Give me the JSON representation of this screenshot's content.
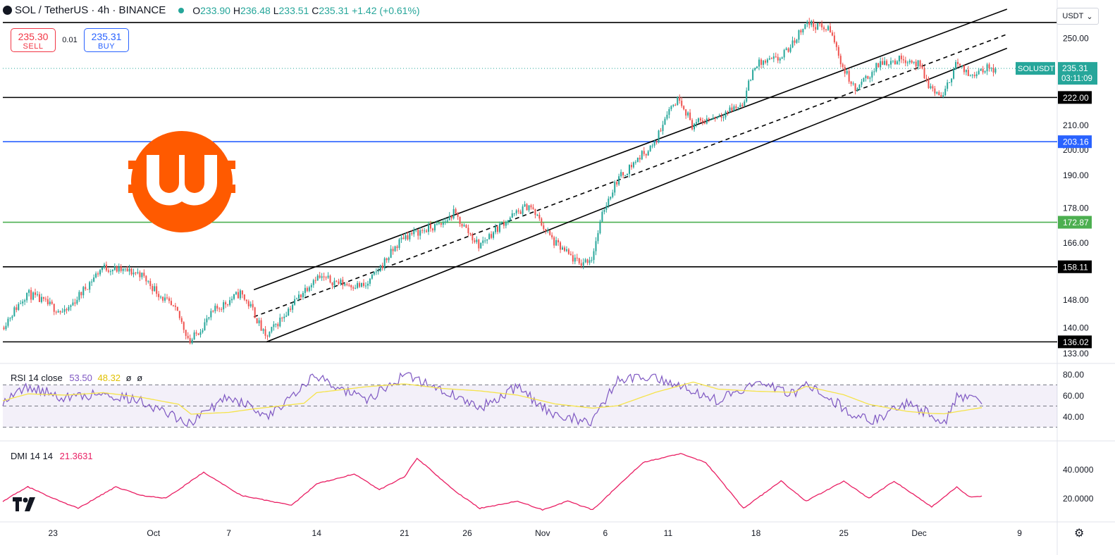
{
  "header": {
    "symbol": "SOL / TetherUS · 4h · BINANCE",
    "open_label": "O",
    "open": "233.90",
    "high_label": "H",
    "high": "236.48",
    "low_label": "L",
    "low": "233.51",
    "close_label": "C",
    "close": "235.31",
    "change": "+1.42 (+0.61%)"
  },
  "trade": {
    "sell_price": "235.30",
    "sell_label": "SELL",
    "spread": "0.01",
    "buy_price": "235.31",
    "buy_label": "BUY"
  },
  "currency_button": "USDT",
  "price_badge": {
    "symbol": "SOLUSDT",
    "price": "235.31",
    "countdown": "03:11:09"
  },
  "colors": {
    "up": "#26a69a",
    "down": "#ef5350",
    "rsi": "#7e57c2",
    "rsi_ma": "#f5e34a",
    "dmi": "#e91e63",
    "blue_line": "#2962ff",
    "green_line": "#4caf50",
    "logo": "#ff5a00"
  },
  "chart_data": [
    {
      "type": "candlestick",
      "title": "SOL / TetherUS · 4h · BINANCE",
      "y_axis_scale": "log",
      "y_ticks": [
        250.0,
        222.0,
        210.0,
        200.0,
        190.0,
        178.0,
        166.0,
        158.11,
        148.0,
        140.0,
        136.02,
        133.0
      ],
      "y_tick_labels": [
        "250.00",
        "222.00",
        "210.00",
        "200.00",
        "190.00",
        "178.00",
        "166.00",
        "158.11",
        "148.00",
        "140.00",
        "136.02",
        "133.00"
      ],
      "x_tick_labels": [
        "23",
        "Oct",
        "7",
        "14",
        "21",
        "26",
        "Nov",
        "6",
        "11",
        "18",
        "25",
        "Dec",
        "9"
      ],
      "x_tick_dates": [
        "2024-09-23",
        "2024-10-01",
        "2024-10-07",
        "2024-10-14",
        "2024-10-21",
        "2024-10-26",
        "2024-11-01",
        "2024-11-06",
        "2024-11-11",
        "2024-11-18",
        "2024-11-25",
        "2024-12-01",
        "2024-12-09"
      ],
      "x_range": [
        "2024-09-19",
        "2024-12-12"
      ],
      "horizontal_levels": [
        {
          "value": 258.0,
          "color": "#000000",
          "label": ""
        },
        {
          "value": 222.0,
          "color": "#000000",
          "label": "222.00"
        },
        {
          "value": 203.16,
          "color": "#2962ff",
          "label": "203.16"
        },
        {
          "value": 172.87,
          "color": "#4caf50",
          "label": "172.87"
        },
        {
          "value": 158.11,
          "color": "#000000",
          "label": "158.11"
        },
        {
          "value": 136.02,
          "color": "#000000",
          "label": "136.02"
        }
      ],
      "last_price": 235.31,
      "key_points": [
        {
          "date": "2024-09-19",
          "price": 140
        },
        {
          "date": "2024-09-21",
          "price": 150
        },
        {
          "date": "2024-09-24",
          "price": 144
        },
        {
          "date": "2024-09-27",
          "price": 158
        },
        {
          "date": "2024-09-30",
          "price": 156
        },
        {
          "date": "2024-10-03",
          "price": 144
        },
        {
          "date": "2024-10-04",
          "price": 136
        },
        {
          "date": "2024-10-06",
          "price": 145
        },
        {
          "date": "2024-10-08",
          "price": 150
        },
        {
          "date": "2024-10-09",
          "price": 145
        },
        {
          "date": "2024-10-10",
          "price": 137
        },
        {
          "date": "2024-10-12",
          "price": 146
        },
        {
          "date": "2024-10-14",
          "price": 155
        },
        {
          "date": "2024-10-16",
          "price": 153
        },
        {
          "date": "2024-10-18",
          "price": 152
        },
        {
          "date": "2024-10-21",
          "price": 168
        },
        {
          "date": "2024-10-24",
          "price": 172
        },
        {
          "date": "2024-10-25",
          "price": 176
        },
        {
          "date": "2024-10-27",
          "price": 165
        },
        {
          "date": "2024-10-29",
          "price": 173
        },
        {
          "date": "2024-10-31",
          "price": 179
        },
        {
          "date": "2024-11-02",
          "price": 166
        },
        {
          "date": "2024-11-04",
          "price": 159
        },
        {
          "date": "2024-11-05",
          "price": 161
        },
        {
          "date": "2024-11-06",
          "price": 178
        },
        {
          "date": "2024-11-07",
          "price": 188
        },
        {
          "date": "2024-11-09",
          "price": 198
        },
        {
          "date": "2024-11-10",
          "price": 202
        },
        {
          "date": "2024-11-11",
          "price": 216
        },
        {
          "date": "2024-11-12",
          "price": 222
        },
        {
          "date": "2024-11-13",
          "price": 210
        },
        {
          "date": "2024-11-15",
          "price": 214
        },
        {
          "date": "2024-11-17",
          "price": 219
        },
        {
          "date": "2024-11-18",
          "price": 237
        },
        {
          "date": "2024-11-20",
          "price": 240
        },
        {
          "date": "2024-11-21",
          "price": 247
        },
        {
          "date": "2024-11-22",
          "price": 258
        },
        {
          "date": "2024-11-24",
          "price": 254
        },
        {
          "date": "2024-11-25",
          "price": 236
        },
        {
          "date": "2024-11-26",
          "price": 225
        },
        {
          "date": "2024-11-28",
          "price": 238
        },
        {
          "date": "2024-11-30",
          "price": 240
        },
        {
          "date": "2024-12-01",
          "price": 237
        },
        {
          "date": "2024-12-02",
          "price": 226
        },
        {
          "date": "2024-12-03",
          "price": 222
        },
        {
          "date": "2024-12-04",
          "price": 238
        },
        {
          "date": "2024-12-05",
          "price": 232
        },
        {
          "date": "2024-12-06",
          "price": 235.31
        }
      ],
      "trend_channel": {
        "upper": [
          {
            "date": "2024-10-09",
            "price": 151
          },
          {
            "date": "2024-12-08",
            "price": 265
          }
        ],
        "middle_dashed": [
          {
            "date": "2024-10-09",
            "price": 143
          },
          {
            "date": "2024-12-08",
            "price": 252
          }
        ],
        "lower": [
          {
            "date": "2024-10-10",
            "price": 136
          },
          {
            "date": "2024-12-08",
            "price": 245
          }
        ]
      }
    },
    {
      "type": "line",
      "title": "RSI 14 close",
      "series": [
        {
          "name": "RSI",
          "last": 53.5
        },
        {
          "name": "RSI-based MA",
          "last": 48.32
        }
      ],
      "extra_values": [
        "ø",
        "ø"
      ],
      "y_ticks": [
        "80.00",
        "60.00",
        "40.00"
      ],
      "band": [
        30,
        70
      ],
      "key_points": [
        {
          "date": "2024-09-19",
          "value": 55
        },
        {
          "date": "2024-09-21",
          "value": 68
        },
        {
          "date": "2024-09-24",
          "value": 58
        },
        {
          "date": "2024-09-27",
          "value": 62
        },
        {
          "date": "2024-09-30",
          "value": 55
        },
        {
          "date": "2024-10-03",
          "value": 38
        },
        {
          "date": "2024-10-04",
          "value": 34
        },
        {
          "date": "2024-10-07",
          "value": 60
        },
        {
          "date": "2024-10-09",
          "value": 48
        },
        {
          "date": "2024-10-10",
          "value": 38
        },
        {
          "date": "2024-10-13",
          "value": 72
        },
        {
          "date": "2024-10-14",
          "value": 78
        },
        {
          "date": "2024-10-18",
          "value": 55
        },
        {
          "date": "2024-10-21",
          "value": 80
        },
        {
          "date": "2024-10-24",
          "value": 65
        },
        {
          "date": "2024-10-27",
          "value": 48
        },
        {
          "date": "2024-10-30",
          "value": 68
        },
        {
          "date": "2024-11-02",
          "value": 40
        },
        {
          "date": "2024-11-05",
          "value": 36
        },
        {
          "date": "2024-11-07",
          "value": 75
        },
        {
          "date": "2024-11-10",
          "value": 78
        },
        {
          "date": "2024-11-13",
          "value": 65
        },
        {
          "date": "2024-11-15",
          "value": 55
        },
        {
          "date": "2024-11-18",
          "value": 72
        },
        {
          "date": "2024-11-21",
          "value": 62
        },
        {
          "date": "2024-11-22",
          "value": 72
        },
        {
          "date": "2024-11-25",
          "value": 48
        },
        {
          "date": "2024-11-27",
          "value": 35
        },
        {
          "date": "2024-11-30",
          "value": 52
        },
        {
          "date": "2024-12-02",
          "value": 42
        },
        {
          "date": "2024-12-03",
          "value": 34
        },
        {
          "date": "2024-12-04",
          "value": 58
        },
        {
          "date": "2024-12-06",
          "value": 53.5
        }
      ]
    },
    {
      "type": "line",
      "title": "DMI 14 14",
      "series": [
        {
          "name": "DMI",
          "last": 21.3631
        }
      ],
      "y_ticks": [
        "40.0000",
        "20.0000"
      ],
      "key_points": [
        {
          "date": "2024-09-19",
          "value": 18
        },
        {
          "date": "2024-09-21",
          "value": 28
        },
        {
          "date": "2024-09-23",
          "value": 20
        },
        {
          "date": "2024-09-25",
          "value": 13
        },
        {
          "date": "2024-09-28",
          "value": 28
        },
        {
          "date": "2024-09-30",
          "value": 22
        },
        {
          "date": "2024-10-02",
          "value": 20
        },
        {
          "date": "2024-10-05",
          "value": 38
        },
        {
          "date": "2024-10-08",
          "value": 22
        },
        {
          "date": "2024-10-12",
          "value": 15
        },
        {
          "date": "2024-10-14",
          "value": 30
        },
        {
          "date": "2024-10-17",
          "value": 37
        },
        {
          "date": "2024-10-19",
          "value": 26
        },
        {
          "date": "2024-10-21",
          "value": 35
        },
        {
          "date": "2024-10-22",
          "value": 48
        },
        {
          "date": "2024-10-25",
          "value": 25
        },
        {
          "date": "2024-10-27",
          "value": 13
        },
        {
          "date": "2024-10-30",
          "value": 18
        },
        {
          "date": "2024-11-01",
          "value": 12
        },
        {
          "date": "2024-11-03",
          "value": 18
        },
        {
          "date": "2024-11-05",
          "value": 12
        },
        {
          "date": "2024-11-09",
          "value": 45
        },
        {
          "date": "2024-11-12",
          "value": 51
        },
        {
          "date": "2024-11-14",
          "value": 45
        },
        {
          "date": "2024-11-17",
          "value": 13
        },
        {
          "date": "2024-11-20",
          "value": 32
        },
        {
          "date": "2024-11-22",
          "value": 18
        },
        {
          "date": "2024-11-25",
          "value": 32
        },
        {
          "date": "2024-11-27",
          "value": 20
        },
        {
          "date": "2024-11-29",
          "value": 32
        },
        {
          "date": "2024-12-02",
          "value": 14
        },
        {
          "date": "2024-12-04",
          "value": 28
        },
        {
          "date": "2024-12-05",
          "value": 21
        },
        {
          "date": "2024-12-06",
          "value": 21.3631
        }
      ]
    }
  ]
}
